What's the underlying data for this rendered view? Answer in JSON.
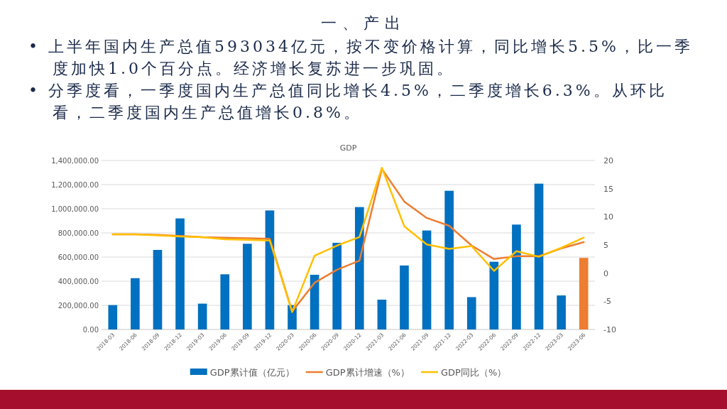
{
  "chart_data": {
    "type": "bar",
    "title": "GDP",
    "annotations": [
      "一、产出",
      "• 上半年国内生产总值593034亿元，按不变价格计算，同比增长5.5%，比一季度加快1.0个百分点。经济增长复苏进一步巩固。",
      "• 分季度看，一季度国内生产总值同比增长4.5%，二季度增长6.3%。从环比看，二季度国内生产总值增长0.8%。"
    ],
    "categories": [
      "2018-03",
      "2018-06",
      "2018-09",
      "2018-12",
      "2019-03",
      "2019-06",
      "2019-09",
      "2019-12",
      "2020-03",
      "2020-06",
      "2020-09",
      "2020-12",
      "2021-03",
      "2021-06",
      "2021-09",
      "2021-12",
      "2022-03",
      "2022-06",
      "2022-09",
      "2022-12",
      "2023-03",
      "2023-06"
    ],
    "series": [
      {
        "name": "GDP累计值（亿元）",
        "color": "#0070c0",
        "colors": [
          "#0070c0",
          "#0070c0",
          "#0070c0",
          "#0070c0",
          "#0070c0",
          "#0070c0",
          "#0070c0",
          "#0070c0",
          "#0070c0",
          "#0070c0",
          "#0070c0",
          "#0070c0",
          "#0070c0",
          "#0070c0",
          "#0070c0",
          "#0070c0",
          "#0070c0",
          "#0070c0",
          "#0070c0",
          "#0070c0",
          "#0070c0",
          "#ed7d31"
        ],
        "values": [
          202000,
          425000,
          659000,
          920000,
          214000,
          457000,
          710000,
          986000,
          202000,
          453000,
          718000,
          1014000,
          247000,
          530000,
          820000,
          1149000,
          268000,
          561000,
          869000,
          1208000,
          282000,
          593034
        ]
      },
      {
        "name": "GDP累计增速（%）",
        "type": "line",
        "axis": "y2",
        "color": "#ed7d31",
        "values": [
          6.9,
          6.9,
          6.8,
          6.6,
          6.4,
          6.3,
          6.2,
          6.1,
          -6.8,
          -1.7,
          0.6,
          2.2,
          18.5,
          12.7,
          9.8,
          8.4,
          4.9,
          2.5,
          3.0,
          3.0,
          4.4,
          5.5
        ]
      },
      {
        "name": "GDP同比（%）",
        "type": "line",
        "axis": "y2",
        "color": "#ffc000",
        "values": [
          6.9,
          6.9,
          6.7,
          6.5,
          6.4,
          6.0,
          5.9,
          5.8,
          -6.9,
          3.1,
          4.9,
          6.4,
          18.7,
          8.3,
          5.1,
          4.3,
          4.8,
          0.4,
          3.9,
          2.9,
          4.5,
          6.3
        ]
      }
    ],
    "ylim": [
      0,
      1400000
    ],
    "yticks": [
      {
        "value": 0,
        "label": "0.00"
      },
      {
        "value": 200000,
        "label": "200,000.00"
      },
      {
        "value": 400000,
        "label": "400,000.00"
      },
      {
        "value": 600000,
        "label": "600,000.00"
      },
      {
        "value": 800000,
        "label": "800,000.00"
      },
      {
        "value": 1000000,
        "label": "1,000,000.00"
      },
      {
        "value": 1200000,
        "label": "1,200,000.00"
      },
      {
        "value": 1400000,
        "label": "1,400,000.00"
      }
    ],
    "y2lim": [
      -10,
      20
    ],
    "y2ticks": [
      -10,
      -5,
      0,
      5,
      10,
      15,
      20
    ],
    "grid": "y",
    "legend": "bottom",
    "marker": "none",
    "line_style": "solid"
  }
}
